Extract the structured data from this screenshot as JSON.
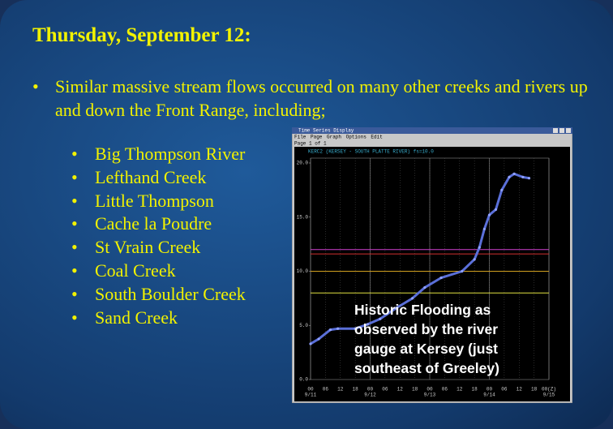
{
  "slide": {
    "title": "Thursday, September  12:",
    "bullet": "Similar massive stream flows occurred on many other creeks and rivers up and down the Front Range, including;",
    "sub_bullets": [
      "Big Thompson River",
      "Lefthand Creek",
      "Little Thompson",
      "Cache la Poudre",
      "St Vrain Creek",
      "Coal Creek",
      "South Boulder Creek",
      "Sand Creek"
    ],
    "caption": "Historic Flooding as observed by the river gauge at Kersey (just southeast of Greeley)"
  },
  "window": {
    "title": "Time Series Display",
    "menu": [
      "File",
      "Page",
      "Graph",
      "Options",
      "Edit"
    ],
    "page": "Page 1 of 1"
  },
  "chart_data": {
    "type": "line",
    "title": "KERC2 (KERSEY - SOUTH PLATTE RIVER) fs=10.0",
    "x": [
      0,
      3.3,
      8,
      11,
      18,
      23,
      28,
      34.5,
      41,
      46,
      52.6,
      61,
      66,
      68,
      70,
      72,
      74.6,
      77,
      80,
      82,
      85.5,
      88
    ],
    "series": [
      {
        "color": "#5a6fd8",
        "values": [
          3.3,
          3.75,
          4.6,
          4.7,
          4.7,
          5.1,
          5.6,
          6.6,
          7.5,
          8.5,
          9.4,
          10.0,
          11.1,
          12.2,
          13.9,
          15.2,
          15.7,
          17.5,
          18.7,
          19.0,
          18.7,
          18.6
        ]
      }
    ],
    "reference_lines": [
      {
        "value": 12.0,
        "color": "#d040d0"
      },
      {
        "value": 11.6,
        "color": "#d03030"
      },
      {
        "value": 10.0,
        "color": "#d0a020"
      },
      {
        "value": 8.0,
        "color": "#e0e040"
      }
    ],
    "xlim": [
      0,
      96
    ],
    "ylim": [
      0,
      20
    ],
    "xticks": [
      {
        "value": 0,
        "label": "00"
      },
      {
        "value": 6,
        "label": "06"
      },
      12,
      18,
      {
        "value": 24,
        "label": "00"
      },
      {
        "value": 30,
        "label": "06"
      },
      {
        "value": 36,
        "label": "12"
      },
      {
        "value": 42,
        "label": "18"
      },
      {
        "value": 48,
        "label": "00"
      },
      {
        "value": 54,
        "label": "06"
      },
      {
        "value": 60,
        "label": "12"
      },
      {
        "value": 66,
        "label": "18"
      },
      {
        "value": 72,
        "label": "00"
      },
      {
        "value": 78,
        "label": "06"
      },
      {
        "value": 84,
        "label": "12"
      },
      {
        "value": 90,
        "label": "18"
      },
      {
        "value": 96,
        "label": "00(Z)"
      }
    ],
    "x_date_ticks": [
      {
        "value": 0,
        "label": "9/11"
      },
      {
        "value": 24,
        "label": "9/12"
      },
      {
        "value": 48,
        "label": "9/13"
      },
      {
        "value": 72,
        "label": "9/14"
      },
      {
        "value": 96,
        "label": "9/15"
      }
    ],
    "yticks": [
      {
        "value": 0,
        "label": "0.0"
      },
      {
        "value": 5,
        "label": "5.0"
      },
      {
        "value": 10,
        "label": "10.0"
      },
      {
        "value": 15,
        "label": "15.0"
      },
      {
        "value": 20,
        "label": "20.0"
      }
    ],
    "grid": true
  }
}
